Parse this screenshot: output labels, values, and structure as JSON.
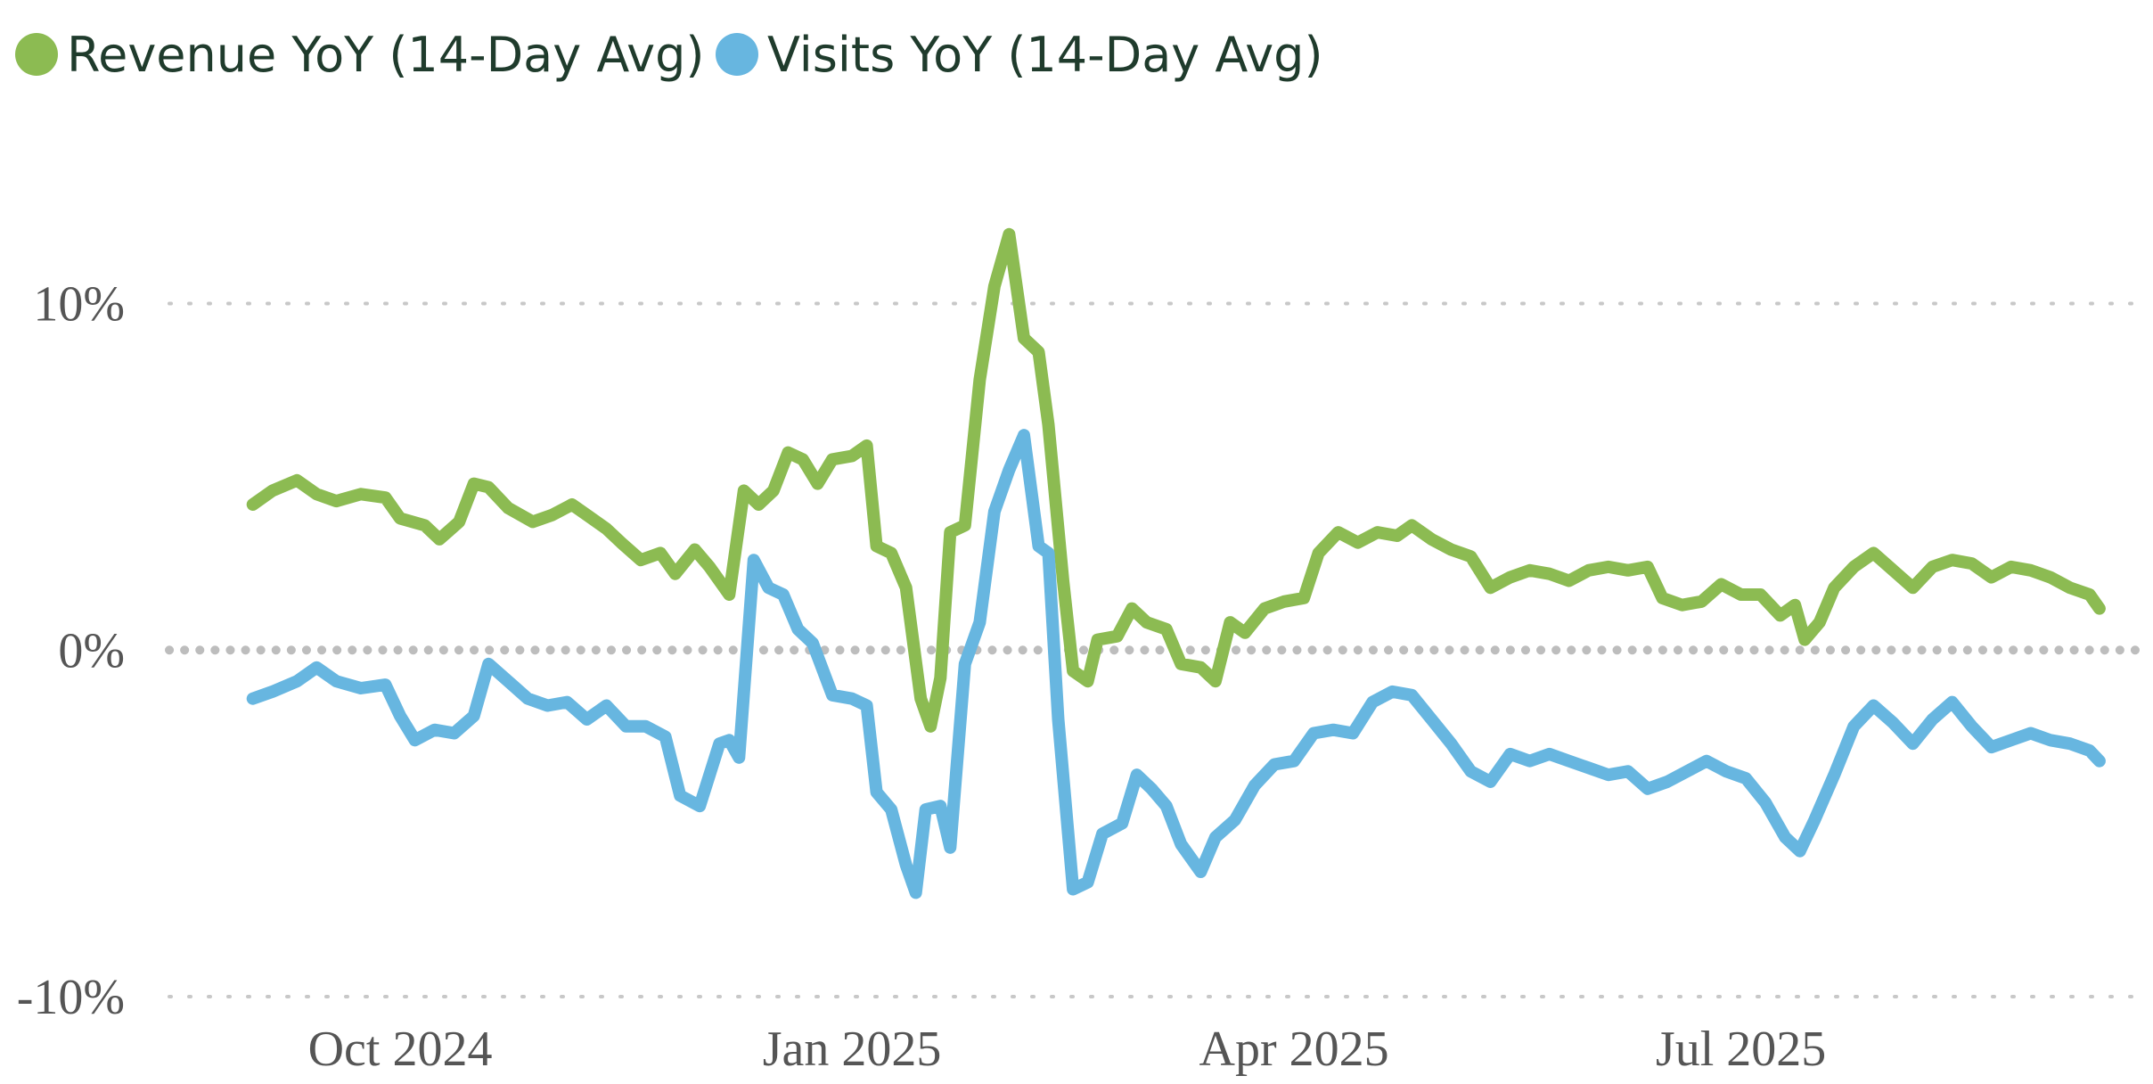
{
  "chart_data": {
    "type": "line",
    "title": "",
    "xlabel": "",
    "ylabel": "",
    "ylim": [
      -10,
      14
    ],
    "xlim": [
      "2024-08-15",
      "2025-09-20"
    ],
    "y_ticks": [
      {
        "value": 10,
        "label": "10%"
      },
      {
        "value": 0,
        "label": "0%"
      },
      {
        "value": -10,
        "label": "-10%"
      }
    ],
    "x_ticks": [
      {
        "date": "2024-10-01",
        "label": "Oct 2024"
      },
      {
        "date": "2025-01-01",
        "label": "Jan 2025"
      },
      {
        "date": "2025-04-01",
        "label": "Apr 2025"
      },
      {
        "date": "2025-07-01",
        "label": "Jul 2025"
      }
    ],
    "grid": "horizontal dotted",
    "legend_position": "top-left",
    "series": [
      {
        "name": "Revenue YoY (14-Day Avg)",
        "color": "#8cbb52",
        "points": [
          [
            "2024-09-01",
            4.2
          ],
          [
            "2024-09-05",
            4.6
          ],
          [
            "2024-09-10",
            4.9
          ],
          [
            "2024-09-14",
            4.5
          ],
          [
            "2024-09-18",
            4.3
          ],
          [
            "2024-09-23",
            4.5
          ],
          [
            "2024-09-28",
            4.4
          ],
          [
            "2024-10-01",
            3.8
          ],
          [
            "2024-10-06",
            3.6
          ],
          [
            "2024-10-09",
            3.2
          ],
          [
            "2024-10-13",
            3.7
          ],
          [
            "2024-10-16",
            4.8
          ],
          [
            "2024-10-19",
            4.7
          ],
          [
            "2024-10-23",
            4.1
          ],
          [
            "2024-10-28",
            3.7
          ],
          [
            "2024-11-01",
            3.9
          ],
          [
            "2024-11-05",
            4.2
          ],
          [
            "2024-11-08",
            3.9
          ],
          [
            "2024-11-12",
            3.5
          ],
          [
            "2024-11-15",
            3.1
          ],
          [
            "2024-11-19",
            2.6
          ],
          [
            "2024-11-23",
            2.8
          ],
          [
            "2024-11-26",
            2.2
          ],
          [
            "2024-11-30",
            2.9
          ],
          [
            "2024-12-03",
            2.4
          ],
          [
            "2024-12-07",
            1.6
          ],
          [
            "2024-12-10",
            4.6
          ],
          [
            "2024-12-13",
            4.2
          ],
          [
            "2024-12-16",
            4.6
          ],
          [
            "2024-12-19",
            5.7
          ],
          [
            "2024-12-22",
            5.5
          ],
          [
            "2024-12-25",
            4.8
          ],
          [
            "2024-12-28",
            5.5
          ],
          [
            "2025-01-01",
            5.6
          ],
          [
            "2025-01-04",
            5.9
          ],
          [
            "2025-01-06",
            3.0
          ],
          [
            "2025-01-09",
            2.8
          ],
          [
            "2025-01-12",
            1.8
          ],
          [
            "2025-01-15",
            -1.4
          ],
          [
            "2025-01-17",
            -2.2
          ],
          [
            "2025-01-19",
            -0.8
          ],
          [
            "2025-01-21",
            3.4
          ],
          [
            "2025-01-24",
            3.6
          ],
          [
            "2025-01-27",
            7.8
          ],
          [
            "2025-01-30",
            10.5
          ],
          [
            "2025-02-02",
            12.0
          ],
          [
            "2025-02-05",
            9.0
          ],
          [
            "2025-02-08",
            8.6
          ],
          [
            "2025-02-10",
            6.5
          ],
          [
            "2025-02-13",
            2.0
          ],
          [
            "2025-02-15",
            -0.6
          ],
          [
            "2025-02-18",
            -0.9
          ],
          [
            "2025-02-20",
            0.3
          ],
          [
            "2025-02-24",
            0.4
          ],
          [
            "2025-02-27",
            1.2
          ],
          [
            "2025-03-02",
            0.8
          ],
          [
            "2025-03-06",
            0.6
          ],
          [
            "2025-03-09",
            -0.4
          ],
          [
            "2025-03-13",
            -0.5
          ],
          [
            "2025-03-16",
            -0.9
          ],
          [
            "2025-03-19",
            0.8
          ],
          [
            "2025-03-22",
            0.5
          ],
          [
            "2025-03-26",
            1.2
          ],
          [
            "2025-03-30",
            1.4
          ],
          [
            "2025-04-03",
            1.5
          ],
          [
            "2025-04-06",
            2.8
          ],
          [
            "2025-04-10",
            3.4
          ],
          [
            "2025-04-14",
            3.1
          ],
          [
            "2025-04-18",
            3.4
          ],
          [
            "2025-04-22",
            3.3
          ],
          [
            "2025-04-25",
            3.6
          ],
          [
            "2025-04-29",
            3.2
          ],
          [
            "2025-05-03",
            2.9
          ],
          [
            "2025-05-07",
            2.7
          ],
          [
            "2025-05-11",
            1.8
          ],
          [
            "2025-05-15",
            2.1
          ],
          [
            "2025-05-19",
            2.3
          ],
          [
            "2025-05-23",
            2.2
          ],
          [
            "2025-05-27",
            2.0
          ],
          [
            "2025-05-31",
            2.3
          ],
          [
            "2025-06-04",
            2.4
          ],
          [
            "2025-06-08",
            2.3
          ],
          [
            "2025-06-12",
            2.4
          ],
          [
            "2025-06-15",
            1.5
          ],
          [
            "2025-06-19",
            1.3
          ],
          [
            "2025-06-23",
            1.4
          ],
          [
            "2025-06-27",
            1.9
          ],
          [
            "2025-07-01",
            1.6
          ],
          [
            "2025-07-05",
            1.6
          ],
          [
            "2025-07-09",
            1.0
          ],
          [
            "2025-07-12",
            1.3
          ],
          [
            "2025-07-14",
            0.3
          ],
          [
            "2025-07-17",
            0.8
          ],
          [
            "2025-07-20",
            1.8
          ],
          [
            "2025-07-24",
            2.4
          ],
          [
            "2025-07-28",
            2.8
          ],
          [
            "2025-08-01",
            2.3
          ],
          [
            "2025-08-05",
            1.8
          ],
          [
            "2025-08-09",
            2.4
          ],
          [
            "2025-08-13",
            2.6
          ],
          [
            "2025-08-17",
            2.5
          ],
          [
            "2025-08-21",
            2.1
          ],
          [
            "2025-08-25",
            2.4
          ],
          [
            "2025-08-29",
            2.3
          ],
          [
            "2025-09-02",
            2.1
          ],
          [
            "2025-09-06",
            1.8
          ],
          [
            "2025-09-10",
            1.6
          ],
          [
            "2025-09-12",
            1.2
          ]
        ]
      },
      {
        "name": "Visits YoY (14-Day Avg)",
        "color": "#67b6e0",
        "points": [
          [
            "2024-09-01",
            -1.4
          ],
          [
            "2024-09-05",
            -1.2
          ],
          [
            "2024-09-10",
            -0.9
          ],
          [
            "2024-09-14",
            -0.5
          ],
          [
            "2024-09-18",
            -0.9
          ],
          [
            "2024-09-23",
            -1.1
          ],
          [
            "2024-09-28",
            -1.0
          ],
          [
            "2024-10-01",
            -1.9
          ],
          [
            "2024-10-04",
            -2.6
          ],
          [
            "2024-10-08",
            -2.3
          ],
          [
            "2024-10-12",
            -2.4
          ],
          [
            "2024-10-16",
            -1.9
          ],
          [
            "2024-10-19",
            -0.4
          ],
          [
            "2024-10-23",
            -0.9
          ],
          [
            "2024-10-27",
            -1.4
          ],
          [
            "2024-10-31",
            -1.6
          ],
          [
            "2024-11-04",
            -1.5
          ],
          [
            "2024-11-08",
            -2.0
          ],
          [
            "2024-11-12",
            -1.6
          ],
          [
            "2024-11-16",
            -2.2
          ],
          [
            "2024-11-20",
            -2.2
          ],
          [
            "2024-11-24",
            -2.5
          ],
          [
            "2024-11-27",
            -4.2
          ],
          [
            "2024-12-01",
            -4.5
          ],
          [
            "2024-12-05",
            -2.7
          ],
          [
            "2024-12-07",
            -2.6
          ],
          [
            "2024-12-09",
            -3.1
          ],
          [
            "2024-12-12",
            2.6
          ],
          [
            "2024-12-15",
            1.8
          ],
          [
            "2024-12-18",
            1.6
          ],
          [
            "2024-12-21",
            0.6
          ],
          [
            "2024-12-24",
            0.2
          ],
          [
            "2024-12-28",
            -1.3
          ],
          [
            "2025-01-01",
            -1.4
          ],
          [
            "2025-01-04",
            -1.6
          ],
          [
            "2025-01-06",
            -4.1
          ],
          [
            "2025-01-09",
            -4.6
          ],
          [
            "2025-01-12",
            -6.2
          ],
          [
            "2025-01-14",
            -7.0
          ],
          [
            "2025-01-16",
            -4.6
          ],
          [
            "2025-01-19",
            -4.5
          ],
          [
            "2025-01-21",
            -5.7
          ],
          [
            "2025-01-24",
            -0.4
          ],
          [
            "2025-01-27",
            0.8
          ],
          [
            "2025-01-30",
            4.0
          ],
          [
            "2025-02-02",
            5.2
          ],
          [
            "2025-02-05",
            6.2
          ],
          [
            "2025-02-08",
            3.0
          ],
          [
            "2025-02-10",
            2.8
          ],
          [
            "2025-02-12",
            -2.0
          ],
          [
            "2025-02-15",
            -6.9
          ],
          [
            "2025-02-18",
            -6.7
          ],
          [
            "2025-02-21",
            -5.3
          ],
          [
            "2025-02-25",
            -5.0
          ],
          [
            "2025-02-28",
            -3.6
          ],
          [
            "2025-03-03",
            -4.0
          ],
          [
            "2025-03-06",
            -4.5
          ],
          [
            "2025-03-09",
            -5.6
          ],
          [
            "2025-03-13",
            -6.4
          ],
          [
            "2025-03-16",
            -5.4
          ],
          [
            "2025-03-20",
            -4.9
          ],
          [
            "2025-03-24",
            -3.9
          ],
          [
            "2025-03-28",
            -3.3
          ],
          [
            "2025-04-01",
            -3.2
          ],
          [
            "2025-04-05",
            -2.4
          ],
          [
            "2025-04-09",
            -2.3
          ],
          [
            "2025-04-13",
            -2.4
          ],
          [
            "2025-04-17",
            -1.5
          ],
          [
            "2025-04-21",
            -1.2
          ],
          [
            "2025-04-25",
            -1.3
          ],
          [
            "2025-04-29",
            -2.0
          ],
          [
            "2025-05-03",
            -2.7
          ],
          [
            "2025-05-07",
            -3.5
          ],
          [
            "2025-05-11",
            -3.8
          ],
          [
            "2025-05-15",
            -3.0
          ],
          [
            "2025-05-19",
            -3.2
          ],
          [
            "2025-05-23",
            -3.0
          ],
          [
            "2025-05-27",
            -3.2
          ],
          [
            "2025-05-31",
            -3.4
          ],
          [
            "2025-06-04",
            -3.6
          ],
          [
            "2025-06-08",
            -3.5
          ],
          [
            "2025-06-12",
            -4.0
          ],
          [
            "2025-06-16",
            -3.8
          ],
          [
            "2025-06-20",
            -3.5
          ],
          [
            "2025-06-24",
            -3.2
          ],
          [
            "2025-06-28",
            -3.5
          ],
          [
            "2025-07-02",
            -3.7
          ],
          [
            "2025-07-06",
            -4.4
          ],
          [
            "2025-07-10",
            -5.4
          ],
          [
            "2025-07-13",
            -5.8
          ],
          [
            "2025-07-16",
            -4.9
          ],
          [
            "2025-07-20",
            -3.6
          ],
          [
            "2025-07-24",
            -2.2
          ],
          [
            "2025-07-28",
            -1.6
          ],
          [
            "2025-08-01",
            -2.1
          ],
          [
            "2025-08-05",
            -2.7
          ],
          [
            "2025-08-09",
            -2.0
          ],
          [
            "2025-08-13",
            -1.5
          ],
          [
            "2025-08-17",
            -2.2
          ],
          [
            "2025-08-21",
            -2.8
          ],
          [
            "2025-08-25",
            -2.6
          ],
          [
            "2025-08-29",
            -2.4
          ],
          [
            "2025-09-02",
            -2.6
          ],
          [
            "2025-09-06",
            -2.7
          ],
          [
            "2025-09-10",
            -2.9
          ],
          [
            "2025-09-12",
            -3.2
          ]
        ]
      }
    ]
  }
}
